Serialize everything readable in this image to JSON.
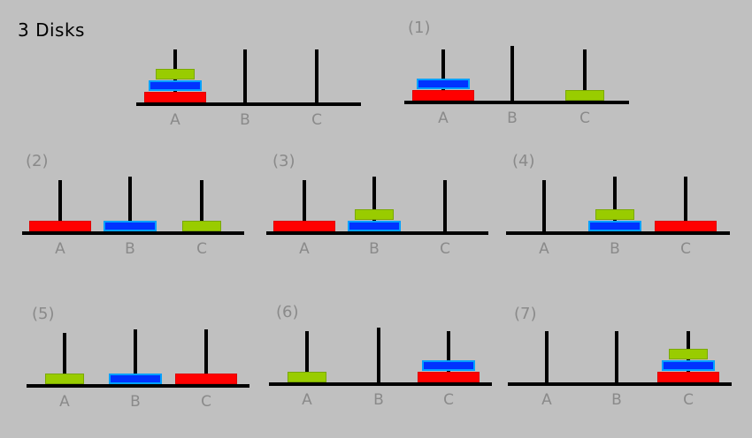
{
  "title": "3 Disks",
  "colors": {
    "small": "#99cc00",
    "medium": "#0033ff",
    "large": "#ff0000",
    "background": "#c0c0c0"
  },
  "peg_names": [
    "A",
    "B",
    "C"
  ],
  "states": [
    {
      "label": "",
      "pegs": [
        [
          "large",
          "medium",
          "small"
        ],
        [],
        []
      ]
    },
    {
      "label": "(1)",
      "pegs": [
        [
          "large",
          "medium"
        ],
        [],
        [
          "small"
        ]
      ]
    },
    {
      "label": "(2)",
      "pegs": [
        [
          "large"
        ],
        [
          "medium"
        ],
        [
          "small"
        ]
      ]
    },
    {
      "label": "(3)",
      "pegs": [
        [
          "large"
        ],
        [
          "medium",
          "small"
        ],
        []
      ]
    },
    {
      "label": "(4)",
      "pegs": [
        [],
        [
          "medium",
          "small"
        ],
        [
          "large"
        ]
      ]
    },
    {
      "label": "(5)",
      "pegs": [
        [
          "small"
        ],
        [
          "medium"
        ],
        [
          "large"
        ]
      ]
    },
    {
      "label": "(6)",
      "pegs": [
        [
          "small"
        ],
        [],
        [
          "large",
          "medium"
        ]
      ]
    },
    {
      "label": "(7)",
      "pegs": [
        [],
        [],
        [
          "large",
          "medium",
          "small"
        ]
      ]
    }
  ]
}
